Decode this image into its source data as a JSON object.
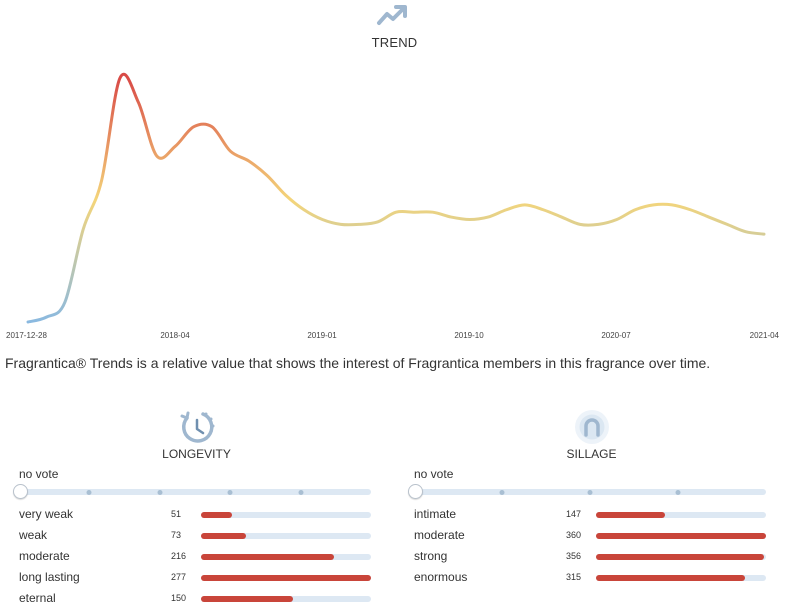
{
  "trend": {
    "title": "TREND",
    "icon": "trend-up-icon",
    "caption": "Fragrantica® Trends is a relative value that shows the interest of Fragrantica members in this fragrance over time."
  },
  "chart_data": {
    "type": "line",
    "title": "TREND",
    "xlabel": "",
    "ylabel": "",
    "tick_labels": [
      "2017-12-28",
      "2018-04",
      "2019-01",
      "2019-10",
      "2020-07",
      "2021-04"
    ],
    "x": [
      "2017-12-28",
      "2018-01",
      "2018-02",
      "2018-03",
      "2018-04",
      "2018-05",
      "2018-06",
      "2018-07",
      "2018-08",
      "2018-09",
      "2018-10",
      "2018-11",
      "2018-12",
      "2019-01",
      "2019-02",
      "2019-03",
      "2019-04",
      "2019-05",
      "2019-06",
      "2019-07",
      "2019-08",
      "2019-09",
      "2019-10",
      "2019-11",
      "2019-12",
      "2020-01",
      "2020-02",
      "2020-03",
      "2020-04",
      "2020-05",
      "2020-06",
      "2020-07",
      "2020-08",
      "2020-09",
      "2020-10",
      "2020-11",
      "2020-12",
      "2021-01",
      "2021-02",
      "2021-03",
      "2021-04"
    ],
    "values": [
      0,
      2,
      8,
      38,
      58,
      100,
      90,
      68,
      72,
      80,
      80,
      70,
      66,
      60,
      52,
      46,
      42,
      40,
      40,
      41,
      45,
      45,
      45,
      43,
      42,
      43,
      46,
      48,
      46,
      43,
      40,
      40,
      42,
      46,
      48,
      48,
      46,
      43,
      40,
      37,
      36
    ],
    "ylim": [
      0,
      100
    ],
    "gradient": [
      "#8ab9e0",
      "#f4d57a",
      "#d94b47"
    ],
    "grid": false,
    "legend": "none"
  },
  "longevity": {
    "title": "LONGEVITY",
    "icon": "clock-icon",
    "no_vote_label": "no vote",
    "max_count": 277,
    "rows": [
      {
        "label": "very weak",
        "count": 51
      },
      {
        "label": "weak",
        "count": 73
      },
      {
        "label": "moderate",
        "count": 216
      },
      {
        "label": "long lasting",
        "count": 277
      },
      {
        "label": "eternal",
        "count": 150
      }
    ]
  },
  "sillage": {
    "title": "SILLAGE",
    "icon": "sillage-icon",
    "no_vote_label": "no vote",
    "max_count": 360,
    "rows": [
      {
        "label": "intimate",
        "count": 147
      },
      {
        "label": "moderate",
        "count": 360
      },
      {
        "label": "strong",
        "count": 356
      },
      {
        "label": "enormous",
        "count": 315
      }
    ]
  },
  "colors": {
    "bar_fill": "#c9453a",
    "track": "#dde8f3",
    "icon": "#9fb7cf"
  }
}
